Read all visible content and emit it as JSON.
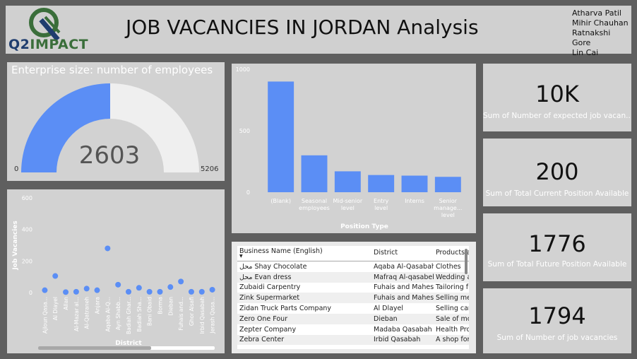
{
  "header": {
    "logo_q2": "Q2",
    "logo_impact": "IMPACT",
    "title": "JOB VACANCIES IN JORDAN Analysis",
    "authors": [
      "Atharva Patil",
      "Mihir Chauhan",
      "Ratnakshi Gore",
      "Lin Cai"
    ]
  },
  "gauge": {
    "title": "Enterprise size: number of employees",
    "value": "2603",
    "min": "0",
    "max": "5206",
    "fill_fraction": 0.5,
    "colors": {
      "fill": "#5b8ef5",
      "track": "#efefef"
    }
  },
  "scatter": {
    "chart_data": {
      "type": "scatter",
      "ylabel": "Job Vacancies",
      "xlabel": "District",
      "yticks": [
        "0",
        "200",
        "400",
        "600"
      ],
      "ylim": [
        0,
        600
      ],
      "categories": [
        "Ajloun Qasa...",
        "Al Dlayel",
        "Allan",
        "Al-Mazar al...",
        "Al-Qatraneh",
        "Anjara",
        "Aqaba Al-Q...",
        "Ayn Shabb...",
        "Badiah Ghar...",
        "Badiah Sha...",
        "Bani Obaid",
        "Borma",
        "Dieban",
        "Fuhais and...",
        "Ghor Alsafi",
        "Irbid Qasabah",
        "Jerash Qasa..."
      ],
      "values": [
        15,
        105,
        3,
        5,
        25,
        15,
        280,
        50,
        5,
        30,
        5,
        5,
        35,
        70,
        5,
        5,
        18
      ],
      "color": "#5b8ef5"
    }
  },
  "bar": {
    "chart_data": {
      "type": "bar",
      "xlabel": "Position Type",
      "yticks": [
        "0",
        "500",
        "1000"
      ],
      "ylim": [
        0,
        1000
      ],
      "categories": [
        "(Blank)",
        "Seasonal employees",
        "Mid-senior level",
        "Entry level",
        "Interns",
        "Senior manage... level"
      ],
      "values": [
        900,
        300,
        170,
        140,
        135,
        125
      ],
      "color": "#5b8ef5"
    }
  },
  "table": {
    "columns": [
      "Business Name (English)",
      "District",
      "Products and"
    ],
    "rows": [
      [
        "محل Shay Chocolate",
        "Aqaba Al-Qasabah",
        "Clothes"
      ],
      [
        "محل Evan dress",
        "Mafraq Al-qasabeh",
        "Wedding and"
      ],
      [
        "Zubaidi Carpentry",
        "Fuhais and Mahes",
        "Tailoring furi"
      ],
      [
        "Zink Supermarket",
        "Fuhais and Mahes",
        "Selling meat"
      ],
      [
        "Zidan Truck Parts Company",
        "Al Dlayel",
        "Selling cars,"
      ],
      [
        "Zero One Four",
        "Dieban",
        "Sale of mob"
      ],
      [
        "Zepter Company",
        "Madaba Qasabah",
        "Health Produ"
      ],
      [
        "Zebra Center",
        "Irbid Qasabah",
        "A shop for ir"
      ]
    ]
  },
  "cards": [
    {
      "value": "10K",
      "label": "Sum of Number of expected job vacan..."
    },
    {
      "value": "200",
      "label": "Sum of Total Current Position Available"
    },
    {
      "value": "1776",
      "label": "Sum of Total Future Position Available"
    },
    {
      "value": "1794",
      "label": "Sum of Number of job vacancies"
    }
  ]
}
